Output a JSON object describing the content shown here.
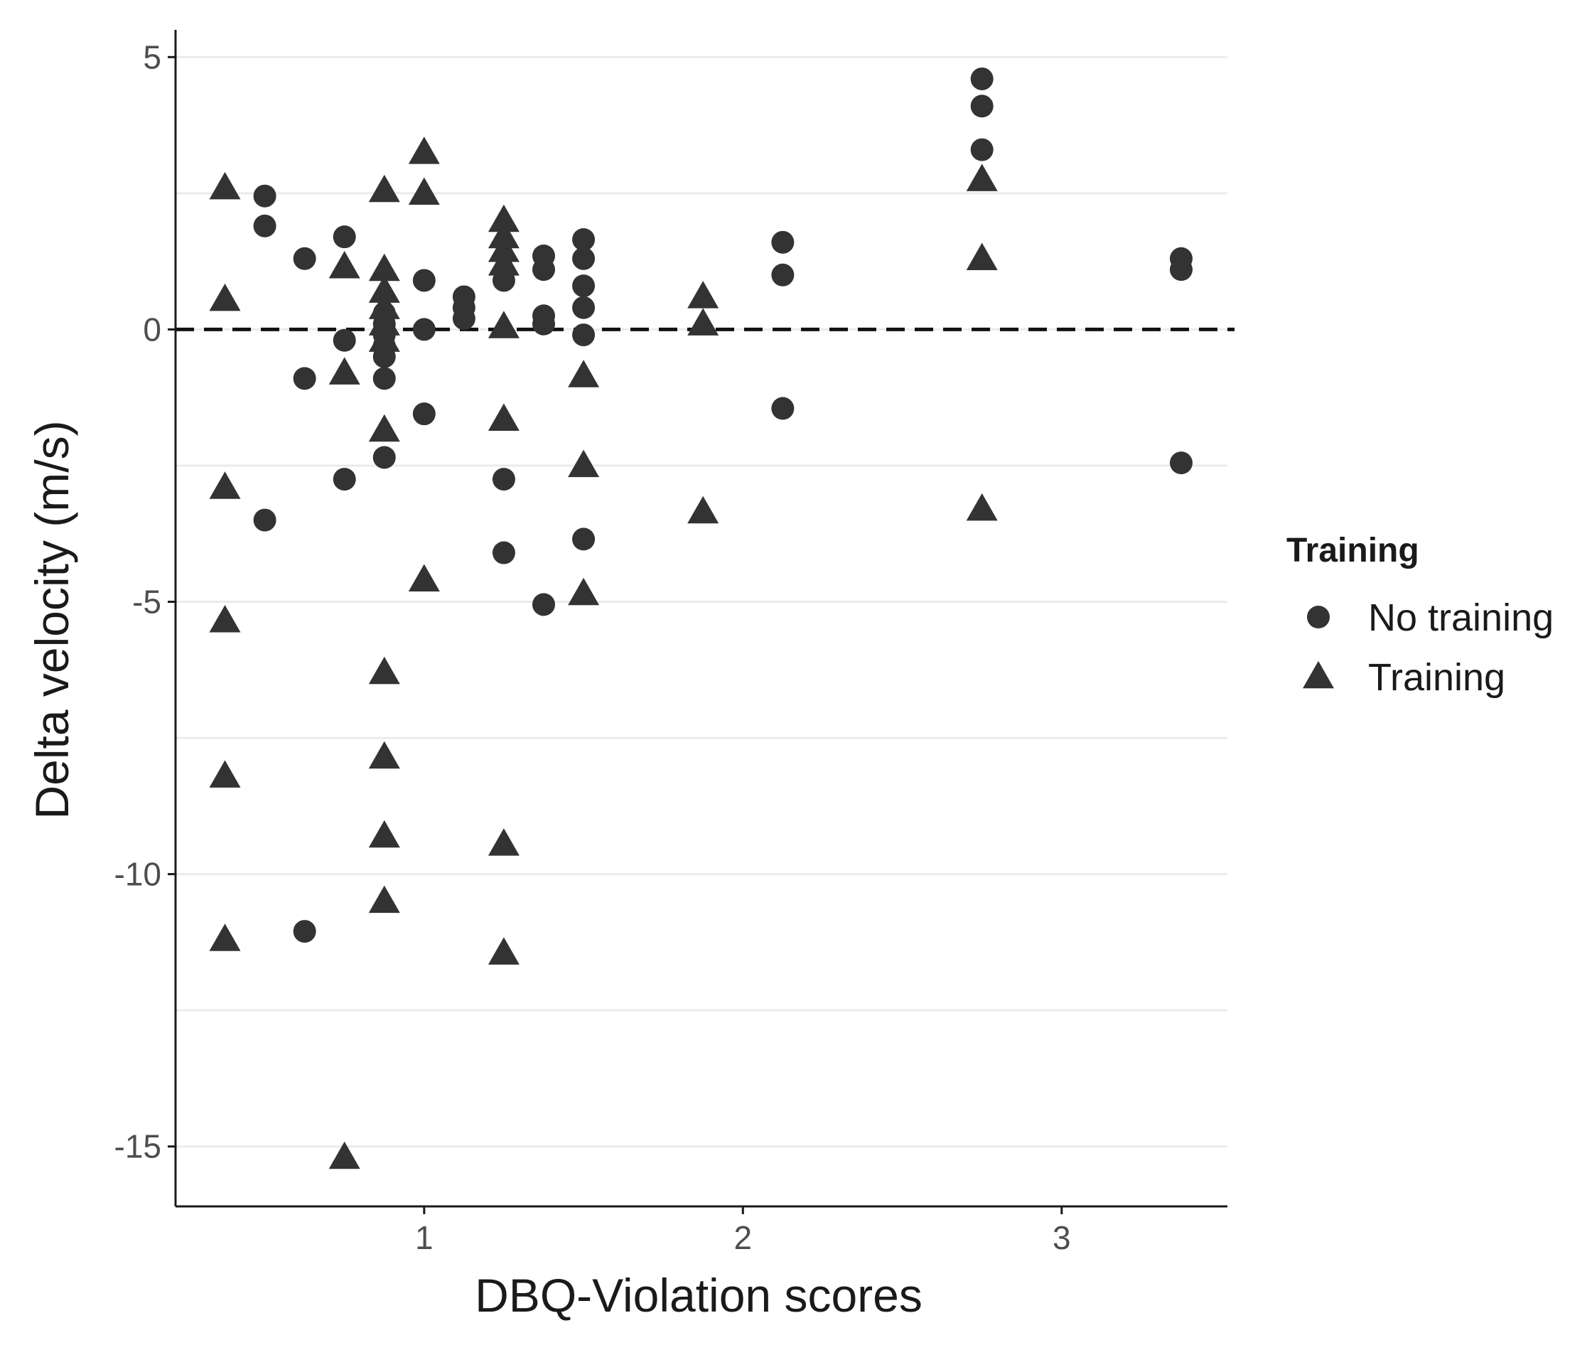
{
  "chart_data": {
    "type": "scatter",
    "title": "",
    "xlabel": "DBQ-Violation scores",
    "ylabel": "Delta velocity (m/s)",
    "xlim": [
      0.22,
      3.52
    ],
    "ylim": [
      -16.1,
      5.5
    ],
    "xticks": [
      1,
      2,
      3
    ],
    "yticks": [
      5,
      0,
      -5,
      -10,
      -15
    ],
    "xtick_labels": [
      "1",
      "2",
      "3"
    ],
    "ytick_labels": [
      "5",
      "0",
      "-5",
      "-10",
      "-15"
    ],
    "y_minor_gridlines": [
      2.5,
      -2.5,
      -7.5,
      -12.5
    ],
    "reference_line": {
      "y": 0,
      "style": "dashed"
    },
    "legend": {
      "title": "Training",
      "position": "right"
    },
    "colors": {
      "points": "#333333",
      "grid": "#ebebeb",
      "axis": "#1a1a1a",
      "ticks": "#4d4d4d"
    },
    "series": [
      {
        "name": "No training",
        "marker": "circle",
        "points": [
          {
            "x": 0.5,
            "y": 2.45
          },
          {
            "x": 0.5,
            "y": 1.9
          },
          {
            "x": 0.5,
            "y": -3.5
          },
          {
            "x": 0.625,
            "y": 1.3
          },
          {
            "x": 0.625,
            "y": -0.9
          },
          {
            "x": 0.625,
            "y": -11.05
          },
          {
            "x": 0.75,
            "y": 1.7
          },
          {
            "x": 0.75,
            "y": -0.2
          },
          {
            "x": 0.75,
            "y": -2.75
          },
          {
            "x": 0.875,
            "y": 0.3
          },
          {
            "x": 0.875,
            "y": 0.1
          },
          {
            "x": 0.875,
            "y": -0.1
          },
          {
            "x": 0.875,
            "y": -0.3
          },
          {
            "x": 0.875,
            "y": -0.5
          },
          {
            "x": 0.875,
            "y": -0.9
          },
          {
            "x": 0.875,
            "y": -2.35
          },
          {
            "x": 1.0,
            "y": 0.9
          },
          {
            "x": 1.0,
            "y": 0.0
          },
          {
            "x": 1.0,
            "y": -1.55
          },
          {
            "x": 1.125,
            "y": 0.6
          },
          {
            "x": 1.125,
            "y": 0.4
          },
          {
            "x": 1.125,
            "y": 0.2
          },
          {
            "x": 1.25,
            "y": 0.9
          },
          {
            "x": 1.25,
            "y": -2.75
          },
          {
            "x": 1.25,
            "y": -4.1
          },
          {
            "x": 1.375,
            "y": 1.35
          },
          {
            "x": 1.375,
            "y": 1.1
          },
          {
            "x": 1.375,
            "y": 0.25
          },
          {
            "x": 1.375,
            "y": 0.1
          },
          {
            "x": 1.375,
            "y": -5.05
          },
          {
            "x": 1.5,
            "y": 1.65
          },
          {
            "x": 1.5,
            "y": 1.3
          },
          {
            "x": 1.5,
            "y": 0.8
          },
          {
            "x": 1.5,
            "y": 0.4
          },
          {
            "x": 1.5,
            "y": -0.1
          },
          {
            "x": 1.5,
            "y": -3.85
          },
          {
            "x": 2.125,
            "y": 1.6
          },
          {
            "x": 2.125,
            "y": 1.0
          },
          {
            "x": 2.125,
            "y": -1.45
          },
          {
            "x": 2.75,
            "y": 4.6
          },
          {
            "x": 2.75,
            "y": 4.1
          },
          {
            "x": 2.75,
            "y": 3.3
          },
          {
            "x": 3.375,
            "y": 1.3
          },
          {
            "x": 3.375,
            "y": 1.1
          },
          {
            "x": 3.375,
            "y": -2.45
          }
        ]
      },
      {
        "name": "Training",
        "marker": "triangle",
        "points": [
          {
            "x": 0.375,
            "y": 2.6
          },
          {
            "x": 0.375,
            "y": 0.55
          },
          {
            "x": 0.375,
            "y": -2.9
          },
          {
            "x": 0.375,
            "y": -5.35
          },
          {
            "x": 0.375,
            "y": -8.2
          },
          {
            "x": 0.375,
            "y": -11.2
          },
          {
            "x": 0.75,
            "y": 1.15
          },
          {
            "x": 0.75,
            "y": -0.8
          },
          {
            "x": 0.75,
            "y": -15.2
          },
          {
            "x": 0.875,
            "y": 2.55
          },
          {
            "x": 0.875,
            "y": 1.1
          },
          {
            "x": 0.875,
            "y": 0.7
          },
          {
            "x": 0.875,
            "y": 0.4
          },
          {
            "x": 0.875,
            "y": 0.1
          },
          {
            "x": 0.875,
            "y": -0.2
          },
          {
            "x": 0.875,
            "y": -1.85
          },
          {
            "x": 0.875,
            "y": -6.3
          },
          {
            "x": 0.875,
            "y": -7.85
          },
          {
            "x": 0.875,
            "y": -9.3
          },
          {
            "x": 0.875,
            "y": -10.5
          },
          {
            "x": 1.0,
            "y": 3.25
          },
          {
            "x": 1.0,
            "y": 2.5
          },
          {
            "x": 1.0,
            "y": -4.6
          },
          {
            "x": 1.25,
            "y": 2.0
          },
          {
            "x": 1.25,
            "y": 1.7
          },
          {
            "x": 1.25,
            "y": 1.45
          },
          {
            "x": 1.25,
            "y": 1.2
          },
          {
            "x": 1.25,
            "y": 0.05
          },
          {
            "x": 1.25,
            "y": -1.65
          },
          {
            "x": 1.25,
            "y": -9.45
          },
          {
            "x": 1.25,
            "y": -11.45
          },
          {
            "x": 1.5,
            "y": -0.85
          },
          {
            "x": 1.5,
            "y": -2.5
          },
          {
            "x": 1.5,
            "y": -4.85
          },
          {
            "x": 1.875,
            "y": 0.6
          },
          {
            "x": 1.875,
            "y": 0.1
          },
          {
            "x": 1.875,
            "y": -3.35
          },
          {
            "x": 2.75,
            "y": 2.75
          },
          {
            "x": 2.75,
            "y": 1.3
          },
          {
            "x": 2.75,
            "y": -3.3
          }
        ]
      }
    ]
  }
}
